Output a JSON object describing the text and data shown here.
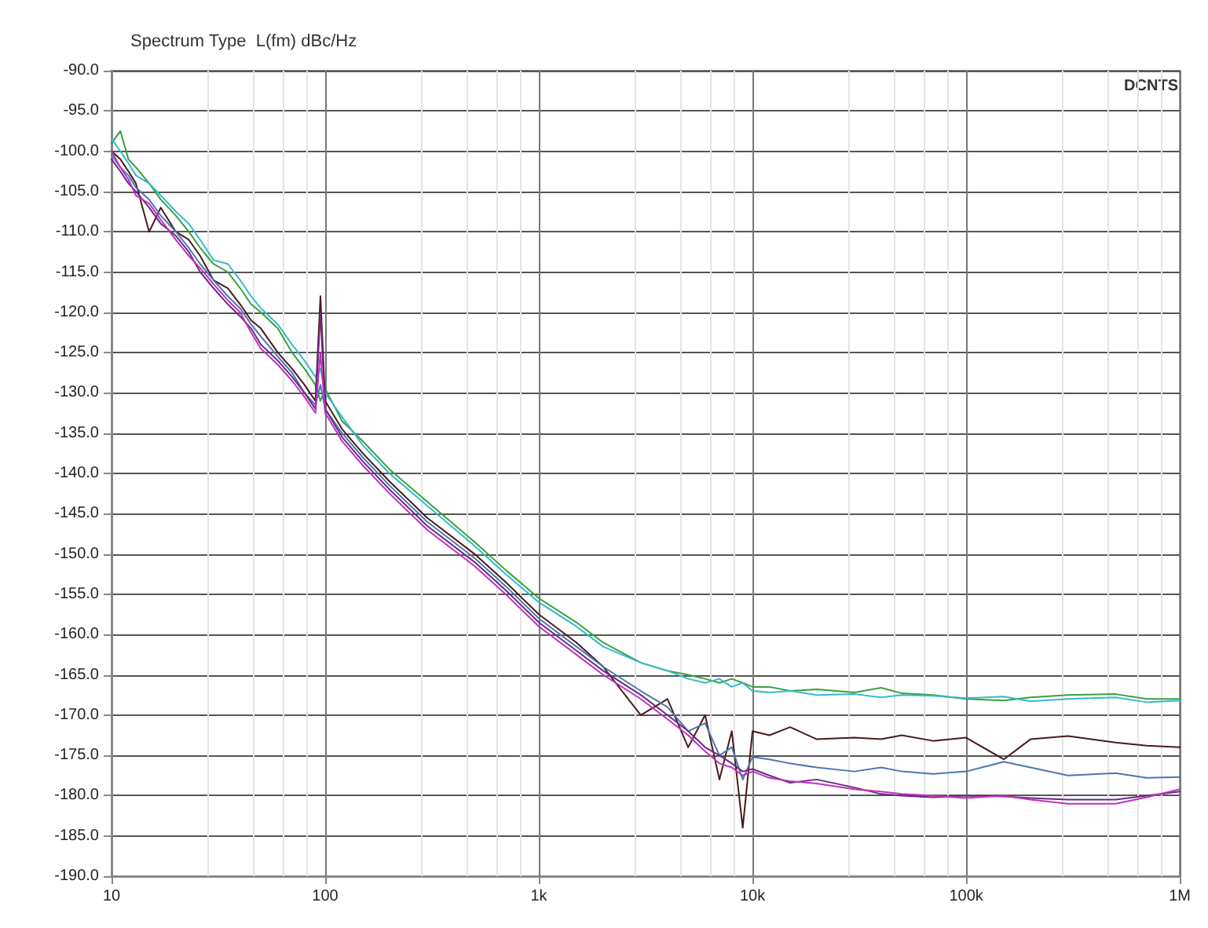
{
  "chart_data": {
    "type": "line",
    "title": "Spectrum Type  L(fm) dBc/Hz",
    "annotations": [
      "DCNTS"
    ],
    "x": [
      10,
      11,
      12,
      13,
      15,
      17,
      20,
      23,
      26,
      30,
      35,
      40,
      45,
      50,
      60,
      70,
      80,
      90,
      95,
      100,
      120,
      150,
      200,
      300,
      500,
      700,
      1000,
      1500,
      2000,
      3000,
      4000,
      5000,
      6000,
      7000,
      8000,
      9000,
      10000,
      12000,
      15000,
      20000,
      30000,
      40000,
      50000,
      70000,
      100000,
      150000,
      200000,
      300000,
      500000,
      700000,
      1000000
    ],
    "series": [
      {
        "color": "#3aa040",
        "values": [
          -99,
          -97.5,
          -101,
          -102,
          -104,
          -106,
          -108,
          -110,
          -112,
          -114,
          -115,
          -117,
          -119,
          -120,
          -122,
          -125,
          -127,
          -129,
          -131,
          -129.5,
          -133.5,
          -136,
          -139.5,
          -143.5,
          -148.5,
          -152,
          -155.5,
          -158.5,
          -161,
          -163.5,
          -164.5,
          -165,
          -165.5,
          -166,
          -165.5,
          -166,
          -166.5,
          -166.5,
          -167,
          -166.8,
          -167.2,
          -166.6,
          -167.3,
          -167.5,
          -168,
          -168.2,
          -167.8,
          -167.5,
          -167.4,
          -168,
          -168
        ]
      },
      {
        "color": "#33bbcc",
        "values": [
          -98.5,
          -100,
          -101.5,
          -103,
          -104,
          -105.5,
          -107.5,
          -109,
          -111,
          -113.5,
          -114,
          -116,
          -118,
          -119.5,
          -121.5,
          -124,
          -126,
          -128,
          -127,
          -130,
          -133,
          -136.5,
          -140,
          -144,
          -149,
          -152.5,
          -156,
          -159,
          -161.5,
          -163.5,
          -164.5,
          -165.5,
          -166,
          -165.5,
          -166.5,
          -166,
          -167,
          -167.2,
          -167,
          -167.5,
          -167.4,
          -167.8,
          -167.5,
          -167.6,
          -167.9,
          -167.7,
          -168.3,
          -168,
          -167.8,
          -168.4,
          -168.2
        ]
      },
      {
        "color": "#4a1a1a",
        "values": [
          -100,
          -101,
          -102.5,
          -104,
          -110,
          -107,
          -110,
          -111,
          -113,
          -116,
          -117,
          -119,
          -121,
          -122,
          -125,
          -127,
          -129,
          -131,
          -118,
          -131,
          -134.5,
          -137.5,
          -141,
          -145.5,
          -150,
          -153.5,
          -157.5,
          -161,
          -164,
          -170,
          -168,
          -174,
          -170,
          -178,
          -172,
          -184,
          -172,
          -172.5,
          -171.5,
          -173,
          -172.8,
          -173,
          -172.5,
          -173.2,
          -172.8,
          -175.5,
          -173,
          -172.6,
          -173.4,
          -173.8,
          -174
        ]
      },
      {
        "color": "#4a78b0",
        "values": [
          -100.5,
          -102,
          -103,
          -104.5,
          -106,
          -108,
          -110,
          -112,
          -114,
          -116,
          -118,
          -119.5,
          -121.5,
          -123,
          -125.5,
          -127.5,
          -130,
          -131.5,
          -129,
          -132,
          -135,
          -138,
          -141.5,
          -146,
          -150.5,
          -154,
          -158,
          -161.5,
          -164,
          -167,
          -169,
          -172,
          -171,
          -175,
          -174,
          -178,
          -175.2,
          -175.5,
          -176,
          -176.5,
          -177,
          -176.5,
          -177,
          -177.3,
          -177,
          -175.8,
          -176.5,
          -177.5,
          -177.2,
          -177.8,
          -177.7
        ]
      },
      {
        "color": "#6a2a80",
        "values": [
          -101,
          -102.5,
          -104,
          -105,
          -107,
          -109,
          -110.5,
          -112.5,
          -115,
          -117,
          -119,
          -120.5,
          -122,
          -124,
          -126,
          -128,
          -130,
          -132,
          -120,
          -132,
          -135.5,
          -138.5,
          -142,
          -146.5,
          -151,
          -154.5,
          -158.5,
          -162,
          -164.5,
          -167.5,
          -170,
          -172,
          -174,
          -175,
          -176,
          -177,
          -176.7,
          -177.5,
          -178.4,
          -178,
          -179,
          -179.8,
          -180,
          -180.2,
          -180,
          -180.1,
          -180.3,
          -180.5,
          -180.5,
          -180,
          -179.5
        ]
      },
      {
        "color": "#c030c0",
        "values": [
          -100,
          -102,
          -103.5,
          -105.5,
          -106.5,
          -108.5,
          -111,
          -113,
          -114.5,
          -116.5,
          -118.5,
          -120,
          -122.5,
          -124.5,
          -126.5,
          -128.5,
          -130.5,
          -132.5,
          -125,
          -132.5,
          -136,
          -139,
          -142.5,
          -147,
          -151.5,
          -155,
          -159,
          -162.5,
          -165,
          -168,
          -170.5,
          -172.5,
          -174.5,
          -176,
          -176.5,
          -177.5,
          -177,
          -177.8,
          -178.2,
          -178.5,
          -179.2,
          -179.5,
          -179.8,
          -180,
          -180.3,
          -180,
          -180.5,
          -181,
          -181,
          -180.2,
          -179.2
        ]
      }
    ],
    "log": "x",
    "xlim": [
      10,
      1000000
    ],
    "xticks": [
      10,
      100,
      {
        "value": 1000,
        "label": "1k"
      },
      {
        "value": 10000,
        "label": "10k"
      },
      {
        "value": 100000,
        "label": "100k"
      },
      {
        "value": 1000000,
        "label": "1M"
      }
    ],
    "ylim": [
      -190,
      -90
    ],
    "yticks": [
      {
        "value": -90,
        "label": "-90.0"
      },
      {
        "value": -95,
        "label": "-95.0"
      },
      {
        "value": -100,
        "label": "-100.0"
      },
      {
        "value": -105,
        "label": "-105.0"
      },
      {
        "value": -110,
        "label": "-110.0"
      },
      {
        "value": -115,
        "label": "-115.0"
      },
      {
        "value": -120,
        "label": "-120.0"
      },
      {
        "value": -125,
        "label": "-125.0"
      },
      {
        "value": -130,
        "label": "-130.0"
      },
      {
        "value": -135,
        "label": "-135.0"
      },
      {
        "value": -140,
        "label": "-140.0"
      },
      {
        "value": -145,
        "label": "-145.0"
      },
      {
        "value": -150,
        "label": "-150.0"
      },
      {
        "value": -155,
        "label": "-155.0"
      },
      {
        "value": -160,
        "label": "-160.0"
      },
      {
        "value": -165,
        "label": "-165.0"
      },
      {
        "value": -170,
        "label": "-170.0"
      },
      {
        "value": -175,
        "label": "-175.0"
      },
      {
        "value": -180,
        "label": "-180.0"
      },
      {
        "value": -185,
        "label": "-185.0"
      },
      {
        "value": -190,
        "label": "-190.0"
      }
    ],
    "grid": true,
    "marker": "none",
    "line_style": "solid"
  }
}
